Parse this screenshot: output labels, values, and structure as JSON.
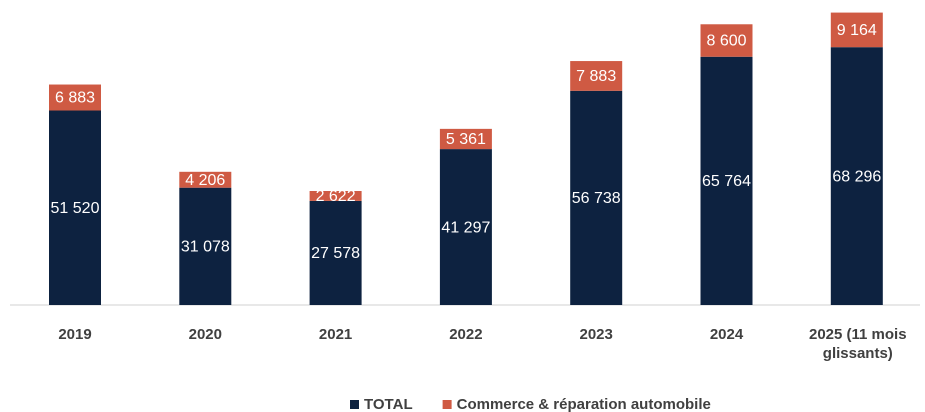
{
  "chart_data": {
    "type": "stacked-bar",
    "categories": [
      "2019",
      "2020",
      "2021",
      "2022",
      "2023",
      "2024",
      "2025 (11 mois glissants)"
    ],
    "series": [
      {
        "name": "TOTAL",
        "color": "#0d2240",
        "values": [
          51520,
          31078,
          27578,
          41297,
          56738,
          65764,
          68296
        ],
        "value_labels": [
          "51 520",
          "31 078",
          "27 578",
          "41 297",
          "56 738",
          "65 764",
          "68 296"
        ]
      },
      {
        "name": "Commerce & réparation automobile",
        "color": "#cf5a43",
        "values": [
          6883,
          4206,
          2622,
          5361,
          7883,
          8600,
          9164
        ],
        "value_labels": [
          "6 883",
          "4 206",
          "2 622",
          "5 361",
          "7 883",
          "8 600",
          "9 164"
        ]
      }
    ],
    "ylim": [
      0,
      80000
    ],
    "legend": "bottom"
  }
}
